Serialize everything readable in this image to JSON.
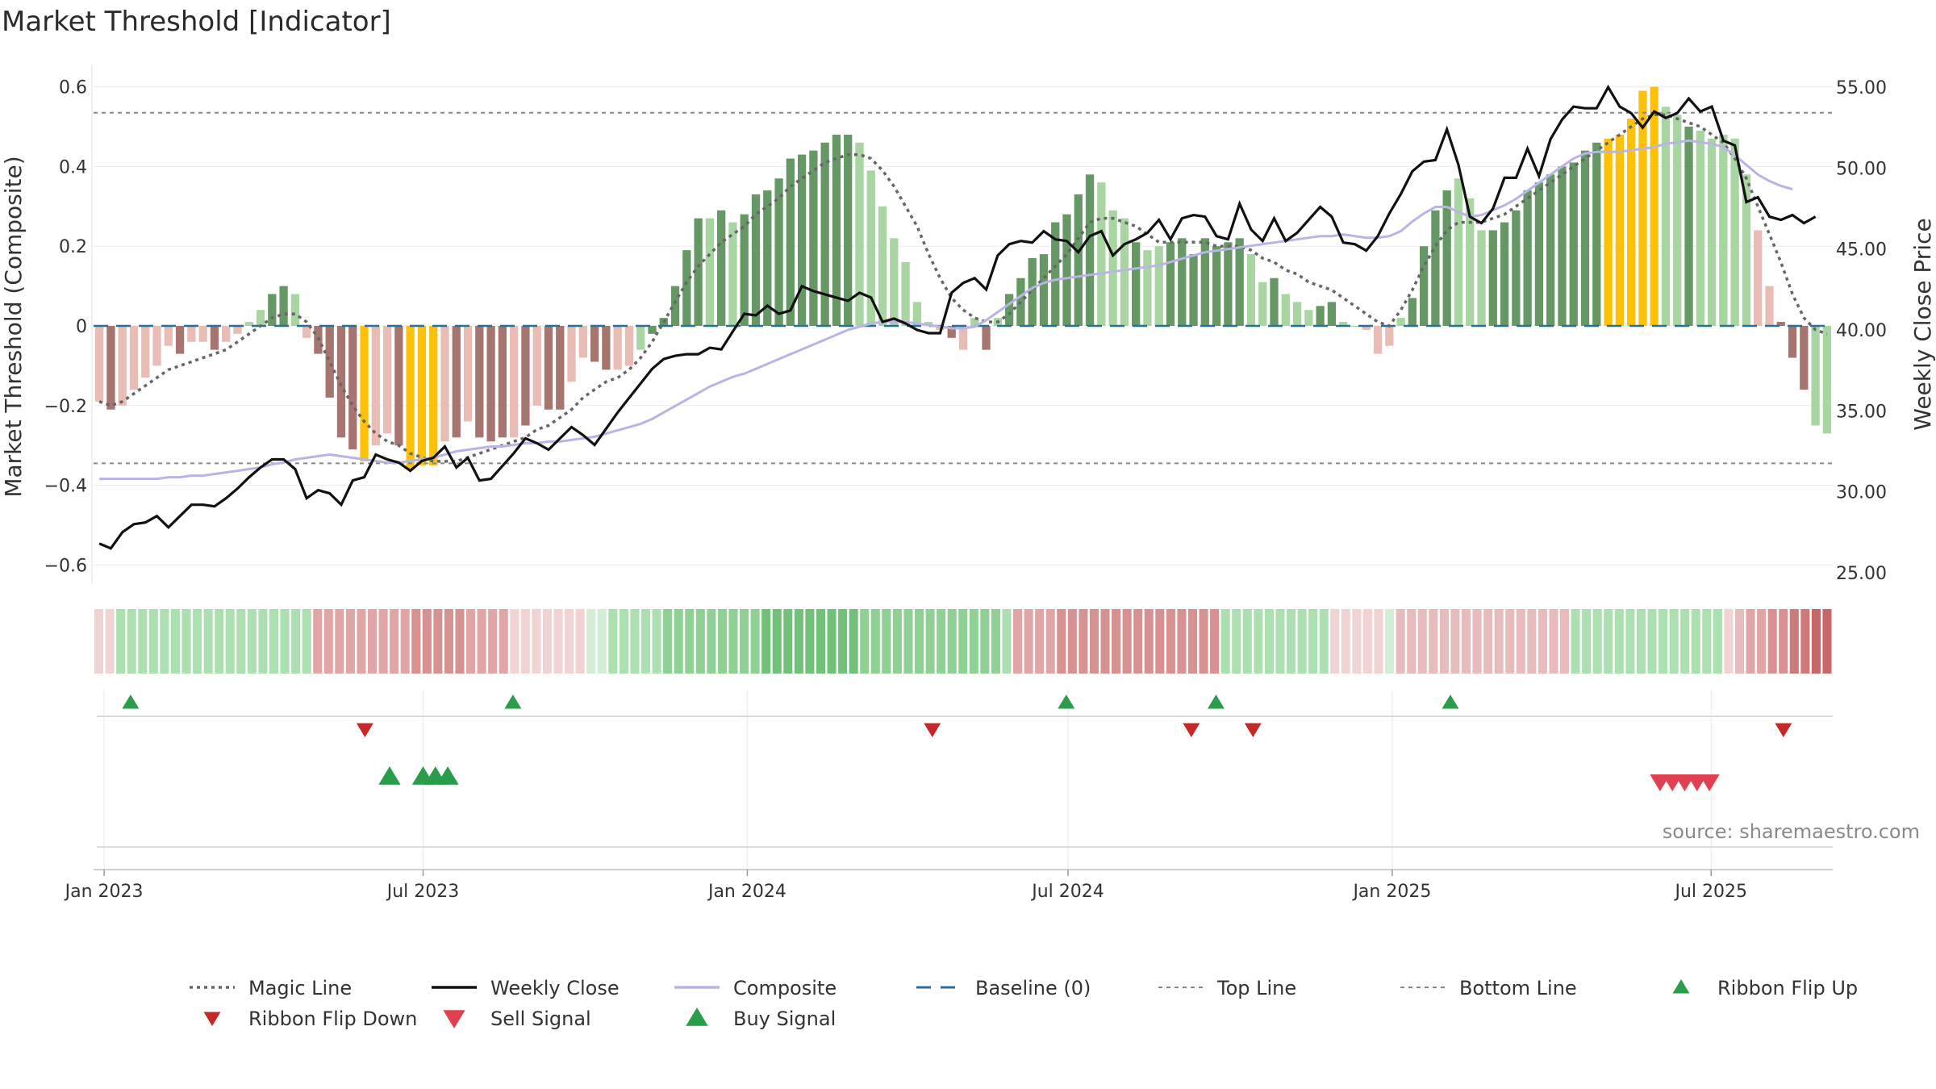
{
  "chart_data": {
    "type": "bar",
    "title": "Market Threshold [Indicator]",
    "ylabel_left": "Market Threshold (Composite)",
    "ylabel_right": "Weekly Close Price",
    "ylim_left": [
      -0.66,
      0.66
    ],
    "ylim_right": [
      24,
      56.5
    ],
    "yticks_left": [
      -0.6,
      -0.4,
      -0.2,
      0,
      0.2,
      0.4,
      0.6
    ],
    "yticks_left_labels": [
      "−0.6",
      "−0.4",
      "−0.2",
      "0",
      "0.2",
      "0.4",
      "0.6"
    ],
    "yticks_right": [
      25,
      30,
      35,
      40,
      45,
      50,
      55
    ],
    "yticks_right_labels": [
      "25.00",
      "30.00",
      "35.00",
      "40.00",
      "45.00",
      "50.00",
      "55.00"
    ],
    "x_start": "2022-12-26",
    "x_end": "2025-09-08",
    "xticks": [
      {
        "date": "2023-01-01",
        "label": "Jan 2023"
      },
      {
        "date": "2023-07-01",
        "label": "Jul 2023"
      },
      {
        "date": "2024-01-01",
        "label": "Jan 2024"
      },
      {
        "date": "2024-07-01",
        "label": "Jul 2024"
      },
      {
        "date": "2025-01-01",
        "label": "Jan 2025"
      },
      {
        "date": "2025-07-01",
        "label": "Jul 2025"
      }
    ],
    "top_line": 0.535,
    "bottom_line": -0.345,
    "baseline": 0,
    "composite": [
      -0.19,
      -0.21,
      -0.2,
      -0.16,
      -0.13,
      -0.1,
      -0.05,
      -0.07,
      -0.04,
      -0.04,
      -0.06,
      -0.04,
      -0.02,
      0.01,
      0.04,
      0.08,
      0.1,
      0.08,
      -0.03,
      -0.07,
      -0.18,
      -0.28,
      -0.31,
      -0.34,
      -0.3,
      -0.27,
      -0.3,
      -0.36,
      -0.35,
      -0.35,
      -0.29,
      -0.28,
      -0.24,
      -0.28,
      -0.29,
      -0.28,
      -0.28,
      -0.25,
      -0.2,
      -0.21,
      -0.21,
      -0.14,
      -0.08,
      -0.09,
      -0.11,
      -0.11,
      -0.1,
      -0.06,
      -0.02,
      0.02,
      0.1,
      0.19,
      0.27,
      0.27,
      0.29,
      0.26,
      0.28,
      0.33,
      0.34,
      0.37,
      0.42,
      0.43,
      0.44,
      0.46,
      0.48,
      0.48,
      0.46,
      0.39,
      0.3,
      0.22,
      0.16,
      0.06,
      0.01,
      -0.01,
      -0.03,
      -0.06,
      0.02,
      -0.06,
      0.02,
      0.08,
      0.12,
      0.17,
      0.18,
      0.26,
      0.28,
      0.33,
      0.38,
      0.36,
      0.29,
      0.27,
      0.21,
      0.19,
      0.2,
      0.21,
      0.22,
      0.18,
      0.22,
      0.2,
      0.21,
      0.22,
      0.18,
      0.11,
      0.12,
      0.08,
      0.06,
      0.04,
      0.05,
      0.06,
      0.01,
      0.0,
      -0.01,
      -0.07,
      -0.05,
      0.02,
      0.07,
      0.2,
      0.29,
      0.34,
      0.37,
      0.32,
      0.24,
      0.24,
      0.26,
      0.29,
      0.34,
      0.36,
      0.38,
      0.4,
      0.41,
      0.44,
      0.46,
      0.47,
      0.48,
      0.52,
      0.59,
      0.6,
      0.55,
      0.53,
      0.5,
      0.49,
      0.47,
      0.48,
      0.47,
      0.38,
      0.24,
      0.1,
      0.01,
      -0.08,
      -0.16,
      -0.25,
      -0.27
    ],
    "bar_colors": [
      "#e9bdb6",
      "#a67570",
      "#e9bdb6",
      "#e9bdb6",
      "#e9bdb6",
      "#e9bdb6",
      "#e9bdb6",
      "#a67570",
      "#e9bdb6",
      "#e9bdb6",
      "#a67570",
      "#e9bdb6",
      "#e9bdb6",
      "#a8d5a2",
      "#a8d5a2",
      "#669866",
      "#669866",
      "#a8d5a2",
      "#e9bdb6",
      "#a67570",
      "#a67570",
      "#a67570",
      "#a67570",
      "#ffc107",
      "#e9bdb6",
      "#e9bdb6",
      "#a67570",
      "#ffc107",
      "#ffc107",
      "#ffc107",
      "#e9bdb6",
      "#a67570",
      "#e9bdb6",
      "#a67570",
      "#a67570",
      "#a67570",
      "#e9bdb6",
      "#a67570",
      "#e9bdb6",
      "#a67570",
      "#a67570",
      "#e9bdb6",
      "#e9bdb6",
      "#a67570",
      "#a67570",
      "#e9bdb6",
      "#e9bdb6",
      "#a8d5a2",
      "#669866",
      "#669866",
      "#669866",
      "#669866",
      "#669866",
      "#a8d5a2",
      "#669866",
      "#a8d5a2",
      "#669866",
      "#669866",
      "#669866",
      "#669866",
      "#669866",
      "#669866",
      "#669866",
      "#669866",
      "#669866",
      "#669866",
      "#a8d5a2",
      "#a8d5a2",
      "#a8d5a2",
      "#a8d5a2",
      "#a8d5a2",
      "#a8d5a2",
      "#a8d5a2",
      "#e9bdb6",
      "#a67570",
      "#e9bdb6",
      "#a8d5a2",
      "#a67570",
      "#a8d5a2",
      "#669866",
      "#669866",
      "#669866",
      "#669866",
      "#669866",
      "#669866",
      "#669866",
      "#669866",
      "#a8d5a2",
      "#a8d5a2",
      "#a8d5a2",
      "#669866",
      "#a8d5a2",
      "#a8d5a2",
      "#669866",
      "#669866",
      "#669866",
      "#669866",
      "#669866",
      "#669866",
      "#669866",
      "#a8d5a2",
      "#a8d5a2",
      "#669866",
      "#a8d5a2",
      "#a8d5a2",
      "#a8d5a2",
      "#669866",
      "#669866",
      "#a8d5a2",
      "#a8d5a2",
      "#e9bdb6",
      "#e9bdb6",
      "#e9bdb6",
      "#a8d5a2",
      "#669866",
      "#669866",
      "#669866",
      "#669866",
      "#a8d5a2",
      "#a8d5a2",
      "#a8d5a2",
      "#669866",
      "#669866",
      "#669866",
      "#669866",
      "#669866",
      "#669866",
      "#669866",
      "#669866",
      "#669866",
      "#669866",
      "#ffc107",
      "#ffc107",
      "#ffc107",
      "#ffc107",
      "#ffc107",
      "#a8d5a2",
      "#a8d5a2",
      "#669866",
      "#a8d5a2",
      "#a8d5a2",
      "#a8d5a2",
      "#a8d5a2",
      "#a8d5a2",
      "#e9bdb6",
      "#e9bdb6",
      "#a67570",
      "#a67570",
      "#a67570"
    ],
    "magic_line": [
      -0.19,
      -0.2,
      -0.19,
      -0.17,
      -0.15,
      -0.13,
      -0.11,
      -0.1,
      -0.09,
      -0.08,
      -0.07,
      -0.06,
      -0.04,
      -0.02,
      0.0,
      0.02,
      0.03,
      0.03,
      0.01,
      -0.03,
      -0.09,
      -0.15,
      -0.2,
      -0.24,
      -0.27,
      -0.29,
      -0.3,
      -0.32,
      -0.33,
      -0.34,
      -0.34,
      -0.34,
      -0.33,
      -0.32,
      -0.31,
      -0.3,
      -0.29,
      -0.28,
      -0.26,
      -0.25,
      -0.23,
      -0.21,
      -0.18,
      -0.16,
      -0.14,
      -0.13,
      -0.11,
      -0.08,
      -0.04,
      0.01,
      0.06,
      0.11,
      0.15,
      0.18,
      0.21,
      0.23,
      0.25,
      0.28,
      0.3,
      0.32,
      0.35,
      0.37,
      0.39,
      0.41,
      0.42,
      0.43,
      0.43,
      0.42,
      0.39,
      0.35,
      0.3,
      0.25,
      0.18,
      0.12,
      0.07,
      0.04,
      0.02,
      0.01,
      0.01,
      0.03,
      0.06,
      0.09,
      0.12,
      0.15,
      0.18,
      0.22,
      0.26,
      0.27,
      0.27,
      0.26,
      0.25,
      0.23,
      0.21,
      0.21,
      0.21,
      0.21,
      0.21,
      0.2,
      0.2,
      0.2,
      0.19,
      0.17,
      0.16,
      0.14,
      0.13,
      0.11,
      0.1,
      0.09,
      0.07,
      0.05,
      0.03,
      0.01,
      0.0,
      0.04,
      0.09,
      0.15,
      0.2,
      0.24,
      0.26,
      0.26,
      0.26,
      0.27,
      0.28,
      0.3,
      0.32,
      0.34,
      0.36,
      0.38,
      0.4,
      0.42,
      0.44,
      0.46,
      0.48,
      0.5,
      0.52,
      0.53,
      0.53,
      0.52,
      0.51,
      0.5,
      0.48,
      0.46,
      0.42,
      0.37,
      0.3,
      0.23,
      0.16,
      0.08,
      0.02,
      -0.01,
      -0.02
    ],
    "composite_line": [
      30.8,
      30.8,
      30.8,
      30.8,
      30.8,
      30.8,
      30.9,
      30.9,
      31.0,
      31.0,
      31.1,
      31.2,
      31.3,
      31.4,
      31.5,
      31.7,
      31.8,
      32.0,
      32.1,
      32.2,
      32.3,
      32.2,
      32.1,
      32.0,
      31.9,
      31.8,
      31.8,
      31.9,
      32.0,
      32.1,
      32.3,
      32.5,
      32.6,
      32.7,
      32.8,
      32.8,
      32.9,
      33.0,
      33.0,
      33.1,
      33.1,
      33.2,
      33.3,
      33.4,
      33.6,
      33.8,
      34.0,
      34.2,
      34.5,
      34.9,
      35.3,
      35.7,
      36.1,
      36.5,
      36.8,
      37.1,
      37.3,
      37.6,
      37.9,
      38.2,
      38.5,
      38.8,
      39.1,
      39.4,
      39.7,
      40.0,
      40.2,
      40.4,
      40.5,
      40.5,
      40.5,
      40.4,
      40.3,
      40.2,
      40.1,
      40.1,
      40.2,
      40.6,
      41.1,
      41.6,
      42.1,
      42.6,
      42.9,
      43.1,
      43.2,
      43.3,
      43.4,
      43.5,
      43.6,
      43.7,
      43.8,
      43.9,
      44.0,
      44.2,
      44.4,
      44.6,
      44.8,
      44.9,
      45.0,
      45.1,
      45.2,
      45.3,
      45.4,
      45.5,
      45.6,
      45.7,
      45.8,
      45.8,
      45.9,
      45.8,
      45.7,
      45.7,
      45.8,
      46.1,
      46.7,
      47.2,
      47.6,
      47.6,
      47.3,
      47.0,
      47.1,
      47.4,
      47.7,
      48.1,
      48.6,
      49.1,
      49.6,
      50.1,
      50.6,
      50.9,
      51.0,
      51.0,
      51.0,
      51.1,
      51.2,
      51.3,
      51.5,
      51.6,
      51.7,
      51.6,
      51.5,
      51.3,
      50.8,
      50.2,
      49.6,
      49.2,
      48.9,
      48.7
    ],
    "weekly_close": [
      26.8,
      26.5,
      27.5,
      28.0,
      28.1,
      28.5,
      27.8,
      28.5,
      29.2,
      29.2,
      29.1,
      29.6,
      30.2,
      30.9,
      31.5,
      32.0,
      32.0,
      31.4,
      29.6,
      30.1,
      29.9,
      29.2,
      30.7,
      30.9,
      32.3,
      32.0,
      31.8,
      31.3,
      31.9,
      32.1,
      32.8,
      31.5,
      32.1,
      30.7,
      30.8,
      31.6,
      32.4,
      33.3,
      33.0,
      32.6,
      33.3,
      34.0,
      33.5,
      32.9,
      33.9,
      34.9,
      35.8,
      36.7,
      37.6,
      38.2,
      38.4,
      38.5,
      38.5,
      38.9,
      38.8,
      39.9,
      41.0,
      40.9,
      41.5,
      41.0,
      41.2,
      42.7,
      42.4,
      42.2,
      42.0,
      41.8,
      42.3,
      42.0,
      40.5,
      40.7,
      40.4,
      40.0,
      39.8,
      39.8,
      42.3,
      42.9,
      43.2,
      42.5,
      44.6,
      45.3,
      45.5,
      45.4,
      46.1,
      45.6,
      45.5,
      44.8,
      45.8,
      46.1,
      44.6,
      45.3,
      45.6,
      46.0,
      46.8,
      45.6,
      46.9,
      47.1,
      47.0,
      45.8,
      45.6,
      47.8,
      46.2,
      45.5,
      46.9,
      45.5,
      46.0,
      46.8,
      47.6,
      47.0,
      45.4,
      45.3,
      44.9,
      45.8,
      47.2,
      48.4,
      49.8,
      50.4,
      50.5,
      52.4,
      50.2,
      47.0,
      46.6,
      47.5,
      49.4,
      49.4,
      51.2,
      49.5,
      51.8,
      53.0,
      53.8,
      53.7,
      53.7,
      55.0,
      53.8,
      53.4,
      52.5,
      53.5,
      53.1,
      53.4,
      54.3,
      53.5,
      53.8,
      51.7,
      51.4,
      47.9,
      48.2,
      47.0,
      46.8,
      47.1,
      46.6,
      47.0
    ],
    "ribbon_colors": [
      "#f1d3d3",
      "#f1d3d3",
      "#ade0b0",
      "#ade0b0",
      "#ade0b0",
      "#ade0b0",
      "#ade0b0",
      "#ade0b0",
      "#ade0b0",
      "#ade0b0",
      "#ade0b0",
      "#ade0b0",
      "#ade0b0",
      "#ade0b0",
      "#ade0b0",
      "#ade0b0",
      "#ade0b0",
      "#ade0b0",
      "#ade0b0",
      "#ade0b0",
      "#e2a5a5",
      "#e2a5a5",
      "#e2a5a5",
      "#e2a5a5",
      "#e2a5a5",
      "#e2a5a5",
      "#e2a5a5",
      "#e2a5a5",
      "#e2a5a5",
      "#d89191",
      "#d89191",
      "#d89191",
      "#d89191",
      "#d89191",
      "#e2a5a5",
      "#e2a5a5",
      "#e2a5a5",
      "#e2a5a5",
      "#f1d3d3",
      "#f1d3d3",
      "#f1d3d3",
      "#f1d3d3",
      "#f1d3d3",
      "#f1d3d3",
      "#f1d3d3",
      "#d4edd5",
      "#d4edd5",
      "#ade0b0",
      "#ade0b0",
      "#ade0b0",
      "#ade0b0",
      "#ade0b0",
      "#8fd195",
      "#8fd195",
      "#8fd195",
      "#8fd195",
      "#8fd195",
      "#8fd195",
      "#8fd195",
      "#8fd195",
      "#8fd195",
      "#71c278",
      "#71c278",
      "#71c278",
      "#71c278",
      "#71c278",
      "#71c278",
      "#71c278",
      "#71c278",
      "#71c278",
      "#8fd195",
      "#8fd195",
      "#8fd195",
      "#8fd195",
      "#8fd195",
      "#8fd195",
      "#8fd195",
      "#8fd195",
      "#8fd195",
      "#8fd195",
      "#8fd195",
      "#8fd195",
      "#8fd195",
      "#ade0b0",
      "#e2a5a5",
      "#e2a5a5",
      "#e2a5a5",
      "#e2a5a5",
      "#d89191",
      "#d89191",
      "#d89191",
      "#d89191",
      "#d89191",
      "#d89191",
      "#d89191",
      "#d89191",
      "#d89191",
      "#d89191",
      "#d89191",
      "#d89191",
      "#d89191",
      "#d89191",
      "#d89191",
      "#ade0b0",
      "#ade0b0",
      "#ade0b0",
      "#ade0b0",
      "#ade0b0",
      "#ade0b0",
      "#ade0b0",
      "#ade0b0",
      "#ade0b0",
      "#ade0b0",
      "#f1d3d3",
      "#f1d3d3",
      "#f1d3d3",
      "#f1d3d3",
      "#f1d3d3",
      "#d4edd5",
      "#e8bcbc",
      "#e8bcbc",
      "#e8bcbc",
      "#e8bcbc",
      "#e8bcbc",
      "#e8bcbc",
      "#e8bcbc",
      "#e8bcbc",
      "#e8bcbc",
      "#e8bcbc",
      "#e8bcbc",
      "#e8bcbc",
      "#e8bcbc",
      "#e8bcbc",
      "#e8bcbc",
      "#e8bcbc",
      "#ade0b0",
      "#ade0b0",
      "#ade0b0",
      "#ade0b0",
      "#ade0b0",
      "#ade0b0",
      "#ade0b0",
      "#ade0b0",
      "#ade0b0",
      "#ade0b0",
      "#ade0b0",
      "#ade0b0",
      "#ade0b0",
      "#ade0b0"
    ],
    "ribbon_tail_colors": [
      "#f1d3d3",
      "#e8bcbc",
      "#e2a5a5",
      "#e2a5a5",
      "#d89191",
      "#d89191",
      "#cf7a7a",
      "#cf7a7a",
      "#c86767",
      "#c86767"
    ],
    "ribbon_flip_up": [
      "2023-01-16",
      "2023-08-21",
      "2024-06-30",
      "2024-09-23",
      "2025-02-03"
    ],
    "ribbon_flip_down": [
      "2023-05-29",
      "2024-04-15",
      "2024-09-09",
      "2024-10-14",
      "2025-08-11"
    ],
    "buy_signal": [
      "2023-06-12",
      "2023-07-01",
      "2023-07-08",
      "2023-07-15"
    ],
    "sell_signal": [
      "2025-06-02",
      "2025-06-09",
      "2025-06-16",
      "2025-06-23",
      "2025-06-30"
    ],
    "source": "source: sharemaestro.com",
    "legend": [
      {
        "label": "Magic Line",
        "kind": "dotted",
        "color": "#666666"
      },
      {
        "label": "Weekly Close",
        "kind": "solid",
        "color": "#111111"
      },
      {
        "label": "Composite",
        "kind": "solid",
        "color": "#b8b4e6"
      },
      {
        "label": "Baseline (0)",
        "kind": "dashed",
        "color": "#2a6f97"
      },
      {
        "label": "Top Line",
        "kind": "dotted-thin",
        "color": "#888888"
      },
      {
        "label": "Bottom Line",
        "kind": "dotted-thin",
        "color": "#888888"
      },
      {
        "label": "Ribbon Flip Up",
        "kind": "tri-up",
        "color": "#2a9d4a"
      },
      {
        "label": "Ribbon Flip Down",
        "kind": "tri-down",
        "color": "#c62828"
      },
      {
        "label": "Sell Signal",
        "kind": "tri-down-big",
        "color": "#e04050"
      },
      {
        "label": "Buy Signal",
        "kind": "tri-up-big",
        "color": "#2a9d4a"
      }
    ]
  }
}
